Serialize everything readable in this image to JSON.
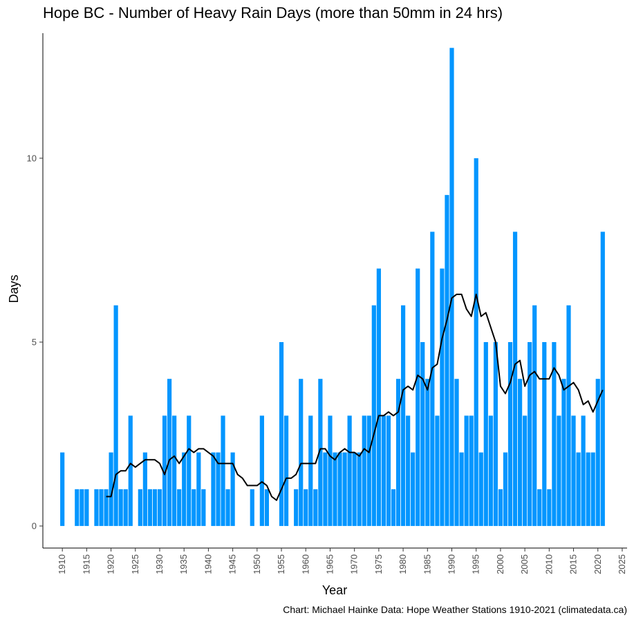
{
  "chart_data": {
    "type": "bar",
    "title": "Hope BC - Number of Heavy Rain Days (more than 50mm in 24 hrs)",
    "xlabel": "Year",
    "ylabel": "Days",
    "caption": "Chart: Michael Hainke  Data: Hope Weather Stations 1910-2021 (climatedata.ca)",
    "bar_color": "#0496FF",
    "line_color": "#000000",
    "xlim": [
      1906,
      2026
    ],
    "ylim": [
      -0.6,
      13.4
    ],
    "x_ticks": [
      1910,
      1915,
      1920,
      1925,
      1930,
      1935,
      1940,
      1945,
      1950,
      1955,
      1960,
      1965,
      1970,
      1975,
      1980,
      1985,
      1990,
      1995,
      2000,
      2005,
      2010,
      2015,
      2020,
      2025
    ],
    "y_ticks": [
      0,
      5,
      10
    ],
    "grid": false,
    "series": [
      {
        "type": "bar",
        "x": [
          1910,
          1911,
          1912,
          1913,
          1914,
          1915,
          1916,
          1917,
          1918,
          1919,
          1920,
          1921,
          1922,
          1923,
          1924,
          1925,
          1926,
          1927,
          1928,
          1929,
          1930,
          1931,
          1932,
          1933,
          1934,
          1935,
          1936,
          1937,
          1938,
          1939,
          1940,
          1941,
          1942,
          1943,
          1944,
          1945,
          1946,
          1947,
          1948,
          1949,
          1950,
          1951,
          1952,
          1953,
          1954,
          1955,
          1956,
          1957,
          1958,
          1959,
          1960,
          1961,
          1962,
          1963,
          1964,
          1965,
          1966,
          1967,
          1968,
          1969,
          1970,
          1971,
          1972,
          1973,
          1974,
          1975,
          1976,
          1977,
          1978,
          1979,
          1980,
          1981,
          1982,
          1983,
          1984,
          1985,
          1986,
          1987,
          1988,
          1989,
          1990,
          1991,
          1992,
          1993,
          1994,
          1995,
          1996,
          1997,
          1998,
          1999,
          2000,
          2001,
          2002,
          2003,
          2004,
          2005,
          2006,
          2007,
          2008,
          2009,
          2010,
          2011,
          2012,
          2013,
          2014,
          2015,
          2016,
          2017,
          2018,
          2019,
          2020,
          2021
        ],
        "values": [
          2,
          0,
          0,
          1,
          1,
          1,
          0,
          1,
          1,
          1,
          2,
          6,
          1,
          1,
          3,
          0,
          1,
          2,
          1,
          1,
          1,
          3,
          4,
          3,
          1,
          2,
          3,
          1,
          2,
          1,
          0,
          2,
          2,
          3,
          1,
          2,
          0,
          0,
          0,
          1,
          0,
          3,
          1,
          0,
          0,
          5,
          3,
          0,
          1,
          4,
          1,
          3,
          1,
          4,
          2,
          3,
          2,
          2,
          2,
          3,
          2,
          2,
          3,
          3,
          6,
          7,
          3,
          3,
          1,
          4,
          6,
          3,
          2,
          7,
          5,
          4,
          8,
          3,
          7,
          9,
          13,
          4,
          2,
          3,
          3,
          10,
          2,
          5,
          3,
          5,
          1,
          2,
          5,
          8,
          4,
          3,
          5,
          6,
          1,
          5,
          1,
          5,
          3,
          4,
          6,
          3,
          2,
          3,
          2,
          2,
          4,
          8
        ]
      },
      {
        "type": "line",
        "x": [
          1919,
          1920,
          1921,
          1922,
          1923,
          1924,
          1925,
          1926,
          1927,
          1928,
          1929,
          1930,
          1931,
          1932,
          1933,
          1934,
          1935,
          1936,
          1937,
          1938,
          1939,
          1940,
          1941,
          1942,
          1943,
          1944,
          1945,
          1946,
          1947,
          1948,
          1949,
          1950,
          1951,
          1952,
          1953,
          1954,
          1955,
          1956,
          1957,
          1958,
          1959,
          1960,
          1961,
          1962,
          1963,
          1964,
          1965,
          1966,
          1967,
          1968,
          1969,
          1970,
          1971,
          1972,
          1973,
          1974,
          1975,
          1976,
          1977,
          1978,
          1979,
          1980,
          1981,
          1982,
          1983,
          1984,
          1985,
          1986,
          1987,
          1988,
          1989,
          1990,
          1991,
          1992,
          1993,
          1994,
          1995,
          1996,
          1997,
          1998,
          1999,
          2000,
          2001,
          2002,
          2003,
          2004,
          2005,
          2006,
          2007,
          2008,
          2009,
          2010,
          2011,
          2012,
          2013,
          2014,
          2015,
          2016,
          2017,
          2018,
          2019,
          2020,
          2021
        ],
        "values": [
          0.8,
          0.8,
          1.4,
          1.5,
          1.5,
          1.7,
          1.6,
          1.7,
          1.8,
          1.8,
          1.8,
          1.7,
          1.4,
          1.8,
          1.9,
          1.7,
          1.9,
          2.1,
          2.0,
          2.1,
          2.1,
          2.0,
          1.9,
          1.7,
          1.7,
          1.7,
          1.7,
          1.4,
          1.3,
          1.1,
          1.1,
          1.1,
          1.2,
          1.1,
          0.8,
          0.7,
          1.0,
          1.3,
          1.3,
          1.4,
          1.7,
          1.7,
          1.7,
          1.7,
          2.1,
          2.1,
          1.9,
          1.8,
          2.0,
          2.1,
          2.0,
          2.0,
          1.9,
          2.1,
          2.0,
          2.5,
          3.0,
          3.0,
          3.1,
          3.0,
          3.1,
          3.7,
          3.8,
          3.7,
          4.1,
          4.0,
          3.7,
          4.3,
          4.4,
          5.1,
          5.6,
          6.2,
          6.3,
          6.3,
          5.9,
          5.7,
          6.3,
          5.7,
          5.8,
          5.4,
          5.0,
          3.8,
          3.6,
          3.9,
          4.4,
          4.5,
          3.8,
          4.1,
          4.2,
          4.0,
          4.0,
          4.0,
          4.3,
          4.1,
          3.7,
          3.8,
          3.9,
          3.7,
          3.3,
          3.4,
          3.1,
          3.4,
          3.7
        ]
      }
    ]
  }
}
